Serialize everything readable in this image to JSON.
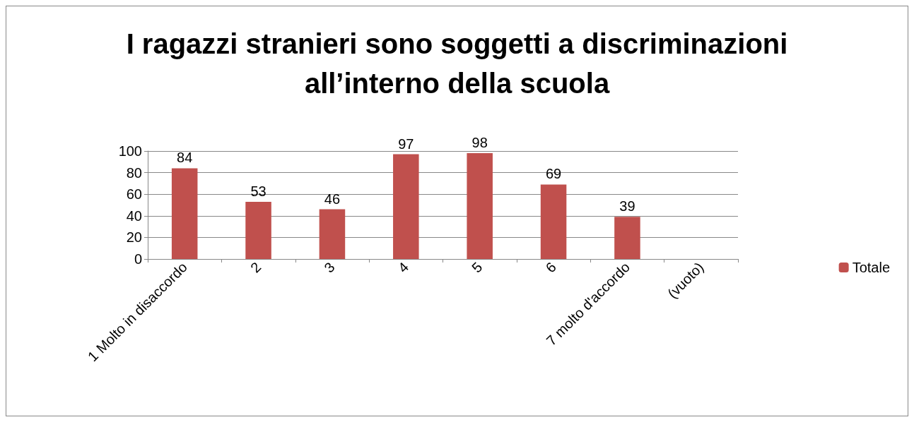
{
  "chart_data": {
    "type": "bar",
    "title": "I ragazzi stranieri sono soggetti a discriminazioni\nall’interno della scuola",
    "categories": [
      "1 Molto in disaccordo",
      "2",
      "3",
      "4",
      "5",
      "6",
      "7 molto d'accordo",
      "(vuoto)"
    ],
    "series": [
      {
        "name": "Totale",
        "color": "#c0504d",
        "values": [
          84,
          53,
          46,
          97,
          98,
          69,
          39,
          null
        ]
      }
    ],
    "ylim": [
      0,
      100
    ],
    "yticks": [
      0,
      20,
      40,
      60,
      80,
      100
    ],
    "grid": "y",
    "legend": "right",
    "data_labels": true
  }
}
